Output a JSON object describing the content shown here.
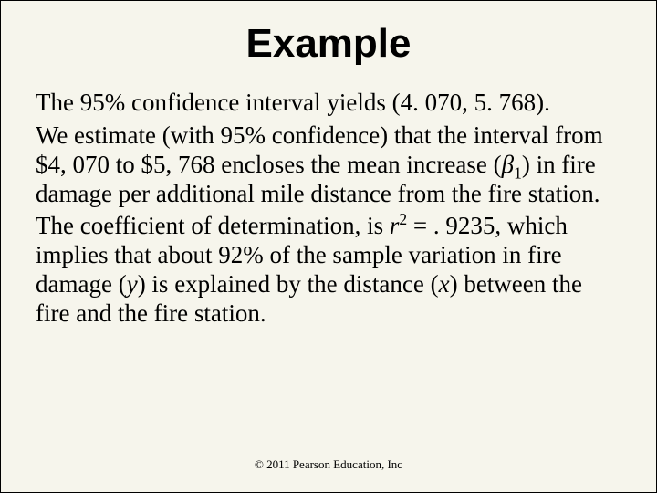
{
  "title": "Example",
  "para1_a": "The 95% confidence interval yields (4. 070, 5. 768).",
  "para2_a": "We estimate (with 95% confidence) that the interval from $4, 070 to $5, 768 encloses the mean increase (",
  "beta": "β",
  "sub1": "1",
  "para2_b": ") in fire damage per additional mile distance from the fire station.",
  "para3_a": "The coefficient of determination, is ",
  "r": "r",
  "sup2": "2",
  "para3_b": " = . 9235, which implies that about 92% of the sample variation in fire damage (",
  "y": "y",
  "para3_c": ") is explained by the distance (",
  "x": "x",
  "para3_d": ") between the fire and the fire station.",
  "footer": "© 2011 Pearson Education, Inc"
}
